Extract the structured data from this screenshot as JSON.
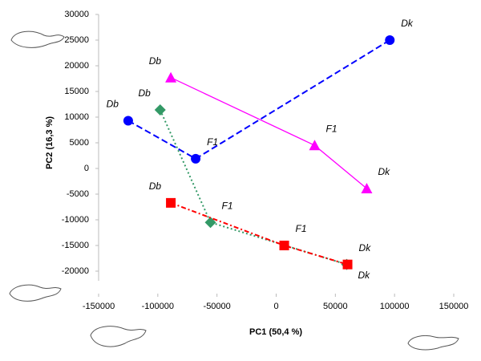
{
  "chart_data": {
    "type": "scatter",
    "x_label": "PC1 (50,4 %)",
    "y_label": "PC2 (16,3 %)",
    "xlim": [
      -150000,
      150000
    ],
    "xticks": [
      -150000,
      -100000,
      -50000,
      0,
      50000,
      100000,
      150000
    ],
    "ylim": [
      -20000,
      30000
    ],
    "yticks": [
      -20000,
      -15000,
      -10000,
      -5000,
      0,
      5000,
      10000,
      15000,
      20000,
      25000,
      30000
    ],
    "series": [
      {
        "color": "#0000ff",
        "marker": "circle",
        "dash": "dashed",
        "point_labels": [
          "Db",
          "F1",
          "Dk"
        ],
        "x": [
          -125000,
          -68000,
          96000
        ],
        "values": [
          9300,
          1900,
          25000
        ]
      },
      {
        "color": "#ff00ff",
        "marker": "triangle",
        "dash": "solid",
        "point_labels": [
          "Db",
          "F1",
          "Dk"
        ],
        "x": [
          -89000,
          32500,
          76500
        ],
        "values": [
          17700,
          4500,
          -3900
        ]
      },
      {
        "color": "#339966",
        "marker": "diamond",
        "dash": "dotted",
        "point_labels": [
          "Db",
          "F1",
          "Dk"
        ],
        "x": [
          -98000,
          -55500,
          59600
        ],
        "values": [
          11400,
          -10500,
          -18700
        ]
      },
      {
        "color": "#ff0000",
        "marker": "square",
        "dash": "dashdot",
        "point_labels": [
          "Db",
          "F1",
          "Dk"
        ],
        "x": [
          -89000,
          6800,
          60300
        ],
        "values": [
          -6700,
          -15000,
          -18700
        ]
      }
    ]
  }
}
